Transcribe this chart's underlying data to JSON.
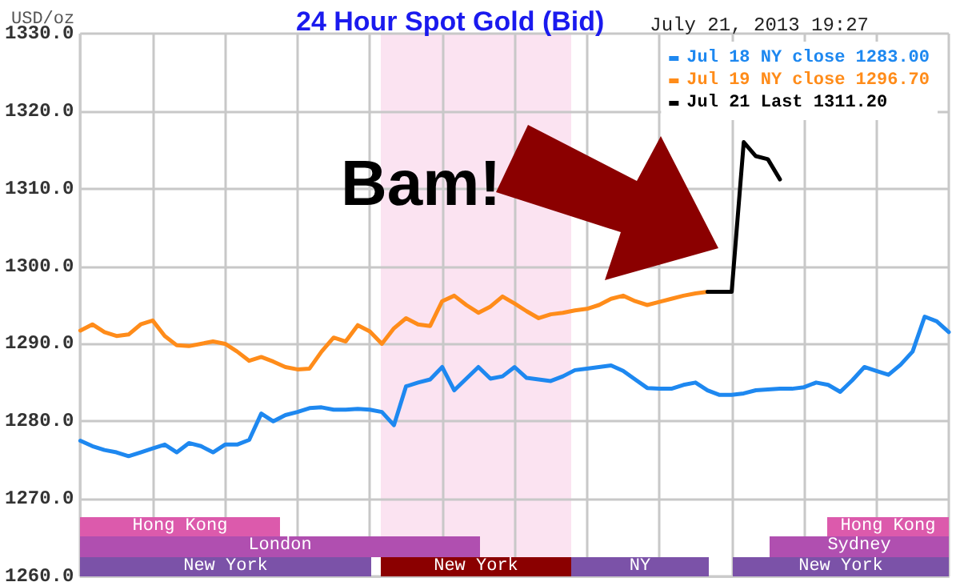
{
  "chart_data": {
    "type": "line",
    "title": "24 Hour Spot Gold (Bid)",
    "subtitle": "July 21, 2013 19:27",
    "ylabel": "USD/oz",
    "categories": [
      null,
      null,
      null,
      null,
      null,
      null,
      null,
      null,
      null,
      null,
      null,
      null,
      null,
      null,
      null,
      null,
      null,
      null,
      null,
      null,
      null,
      null,
      null,
      null,
      null,
      null,
      null,
      null,
      null,
      null,
      null,
      null,
      null,
      null,
      null,
      null,
      null,
      null,
      null,
      null,
      null,
      null,
      null,
      null,
      null,
      null,
      null,
      null,
      null,
      null,
      null,
      null,
      null,
      null,
      null,
      null,
      null,
      null,
      null,
      null,
      null,
      null,
      null,
      null,
      null,
      null,
      null,
      null,
      null,
      null,
      null,
      null,
      null
    ],
    "series": [
      {
        "name": "Jul 18 NY close 1283.00",
        "color": "#1e88f0",
        "values": [
          1277.5,
          1276.8,
          1276.3,
          1276,
          1275.5,
          1276,
          1276.5,
          1277,
          1276,
          1277.2,
          1276.8,
          1276,
          1277,
          1277,
          1277.6,
          1281,
          1280,
          1280.8,
          1281.2,
          1281.7,
          1281.8,
          1281.5,
          1281.5,
          1281.6,
          1281.5,
          1281.2,
          1279.5,
          1284.5,
          1285,
          1285.4,
          1287,
          1284,
          1285.5,
          1287,
          1285.5,
          1285.8,
          1287,
          1285.6,
          1285.4,
          1285.2,
          1285.8,
          1286.6,
          1286.8,
          1287,
          1287.2,
          1286.5,
          1285.4,
          1284.3,
          1284.2,
          1284.2,
          1284.7,
          1285,
          1284,
          1283.4,
          1283.4,
          1283.6,
          1284,
          1284.1,
          1284.2,
          1284.2,
          1284.4,
          1285,
          1284.7,
          1283.8,
          1285.3,
          1287,
          1286.5,
          1286,
          1287.3,
          1289,
          1293.5,
          1292.9,
          1291.5
        ]
      },
      {
        "name": "Jul 19 NY close 1296.70",
        "color": "#ff8c1a",
        "values": [
          1291.7,
          1292.5,
          1291.5,
          1291,
          1291.2,
          1292.5,
          1293,
          1291,
          1289.8,
          1289.7,
          1290,
          1290.3,
          1290,
          1289,
          1287.8,
          1288.3,
          1287.7,
          1287,
          1286.7,
          1286.8,
          1289,
          1290.8,
          1290.3,
          1292.4,
          1291.6,
          1290,
          1292,
          1293.3,
          1292.5,
          1292.3,
          1295.5,
          1296.2,
          1295,
          1294,
          1294.8,
          1296.1,
          1295.2,
          1294.2,
          1293.3,
          1293.8,
          1294,
          1294.3,
          1294.5,
          1295,
          1295.8,
          1296.2,
          1295.5,
          1295,
          1295.4,
          1295.8,
          1296.2,
          1296.5,
          1296.7,
          null,
          null,
          null,
          null,
          null,
          null,
          null,
          null,
          null,
          null,
          null,
          null,
          null,
          null,
          null,
          null,
          null,
          null,
          null,
          null
        ]
      },
      {
        "name": "Jul 21 Last 1311.20",
        "color": "#000000",
        "values": [
          null,
          null,
          null,
          null,
          null,
          null,
          null,
          null,
          null,
          null,
          null,
          null,
          null,
          null,
          null,
          null,
          null,
          null,
          null,
          null,
          null,
          null,
          null,
          null,
          null,
          null,
          null,
          null,
          null,
          null,
          null,
          null,
          null,
          null,
          null,
          null,
          null,
          null,
          null,
          null,
          null,
          null,
          null,
          null,
          null,
          null,
          null,
          null,
          null,
          null,
          null,
          null,
          1296.7,
          1296.7,
          1296.7,
          1316,
          1314.2,
          1313.8,
          1311.2,
          null,
          null,
          null,
          null,
          null,
          null,
          null,
          null,
          null,
          null,
          null,
          null,
          null,
          null
        ]
      }
    ],
    "ylim": [
      1260,
      1330
    ],
    "yticks": [
      {
        "value": 1260,
        "label": "1260.0"
      },
      {
        "value": 1270,
        "label": "1270.0"
      },
      {
        "value": 1280,
        "label": "1280.0"
      },
      {
        "value": 1290,
        "label": "1290.0"
      },
      {
        "value": 1300,
        "label": "1300.0"
      },
      {
        "value": 1310,
        "label": "1310.0"
      },
      {
        "value": 1320,
        "label": "1320.0"
      },
      {
        "value": 1330,
        "label": "1330.0"
      }
    ],
    "tick_labels": "y",
    "annotations": [
      "Bam!",
      "New York",
      "New York",
      "NY",
      "New York",
      "London",
      "Sydney",
      "Hong Kong",
      "Hong Kong"
    ],
    "grid": true,
    "legend": "top right",
    "line_style": "solid"
  }
}
